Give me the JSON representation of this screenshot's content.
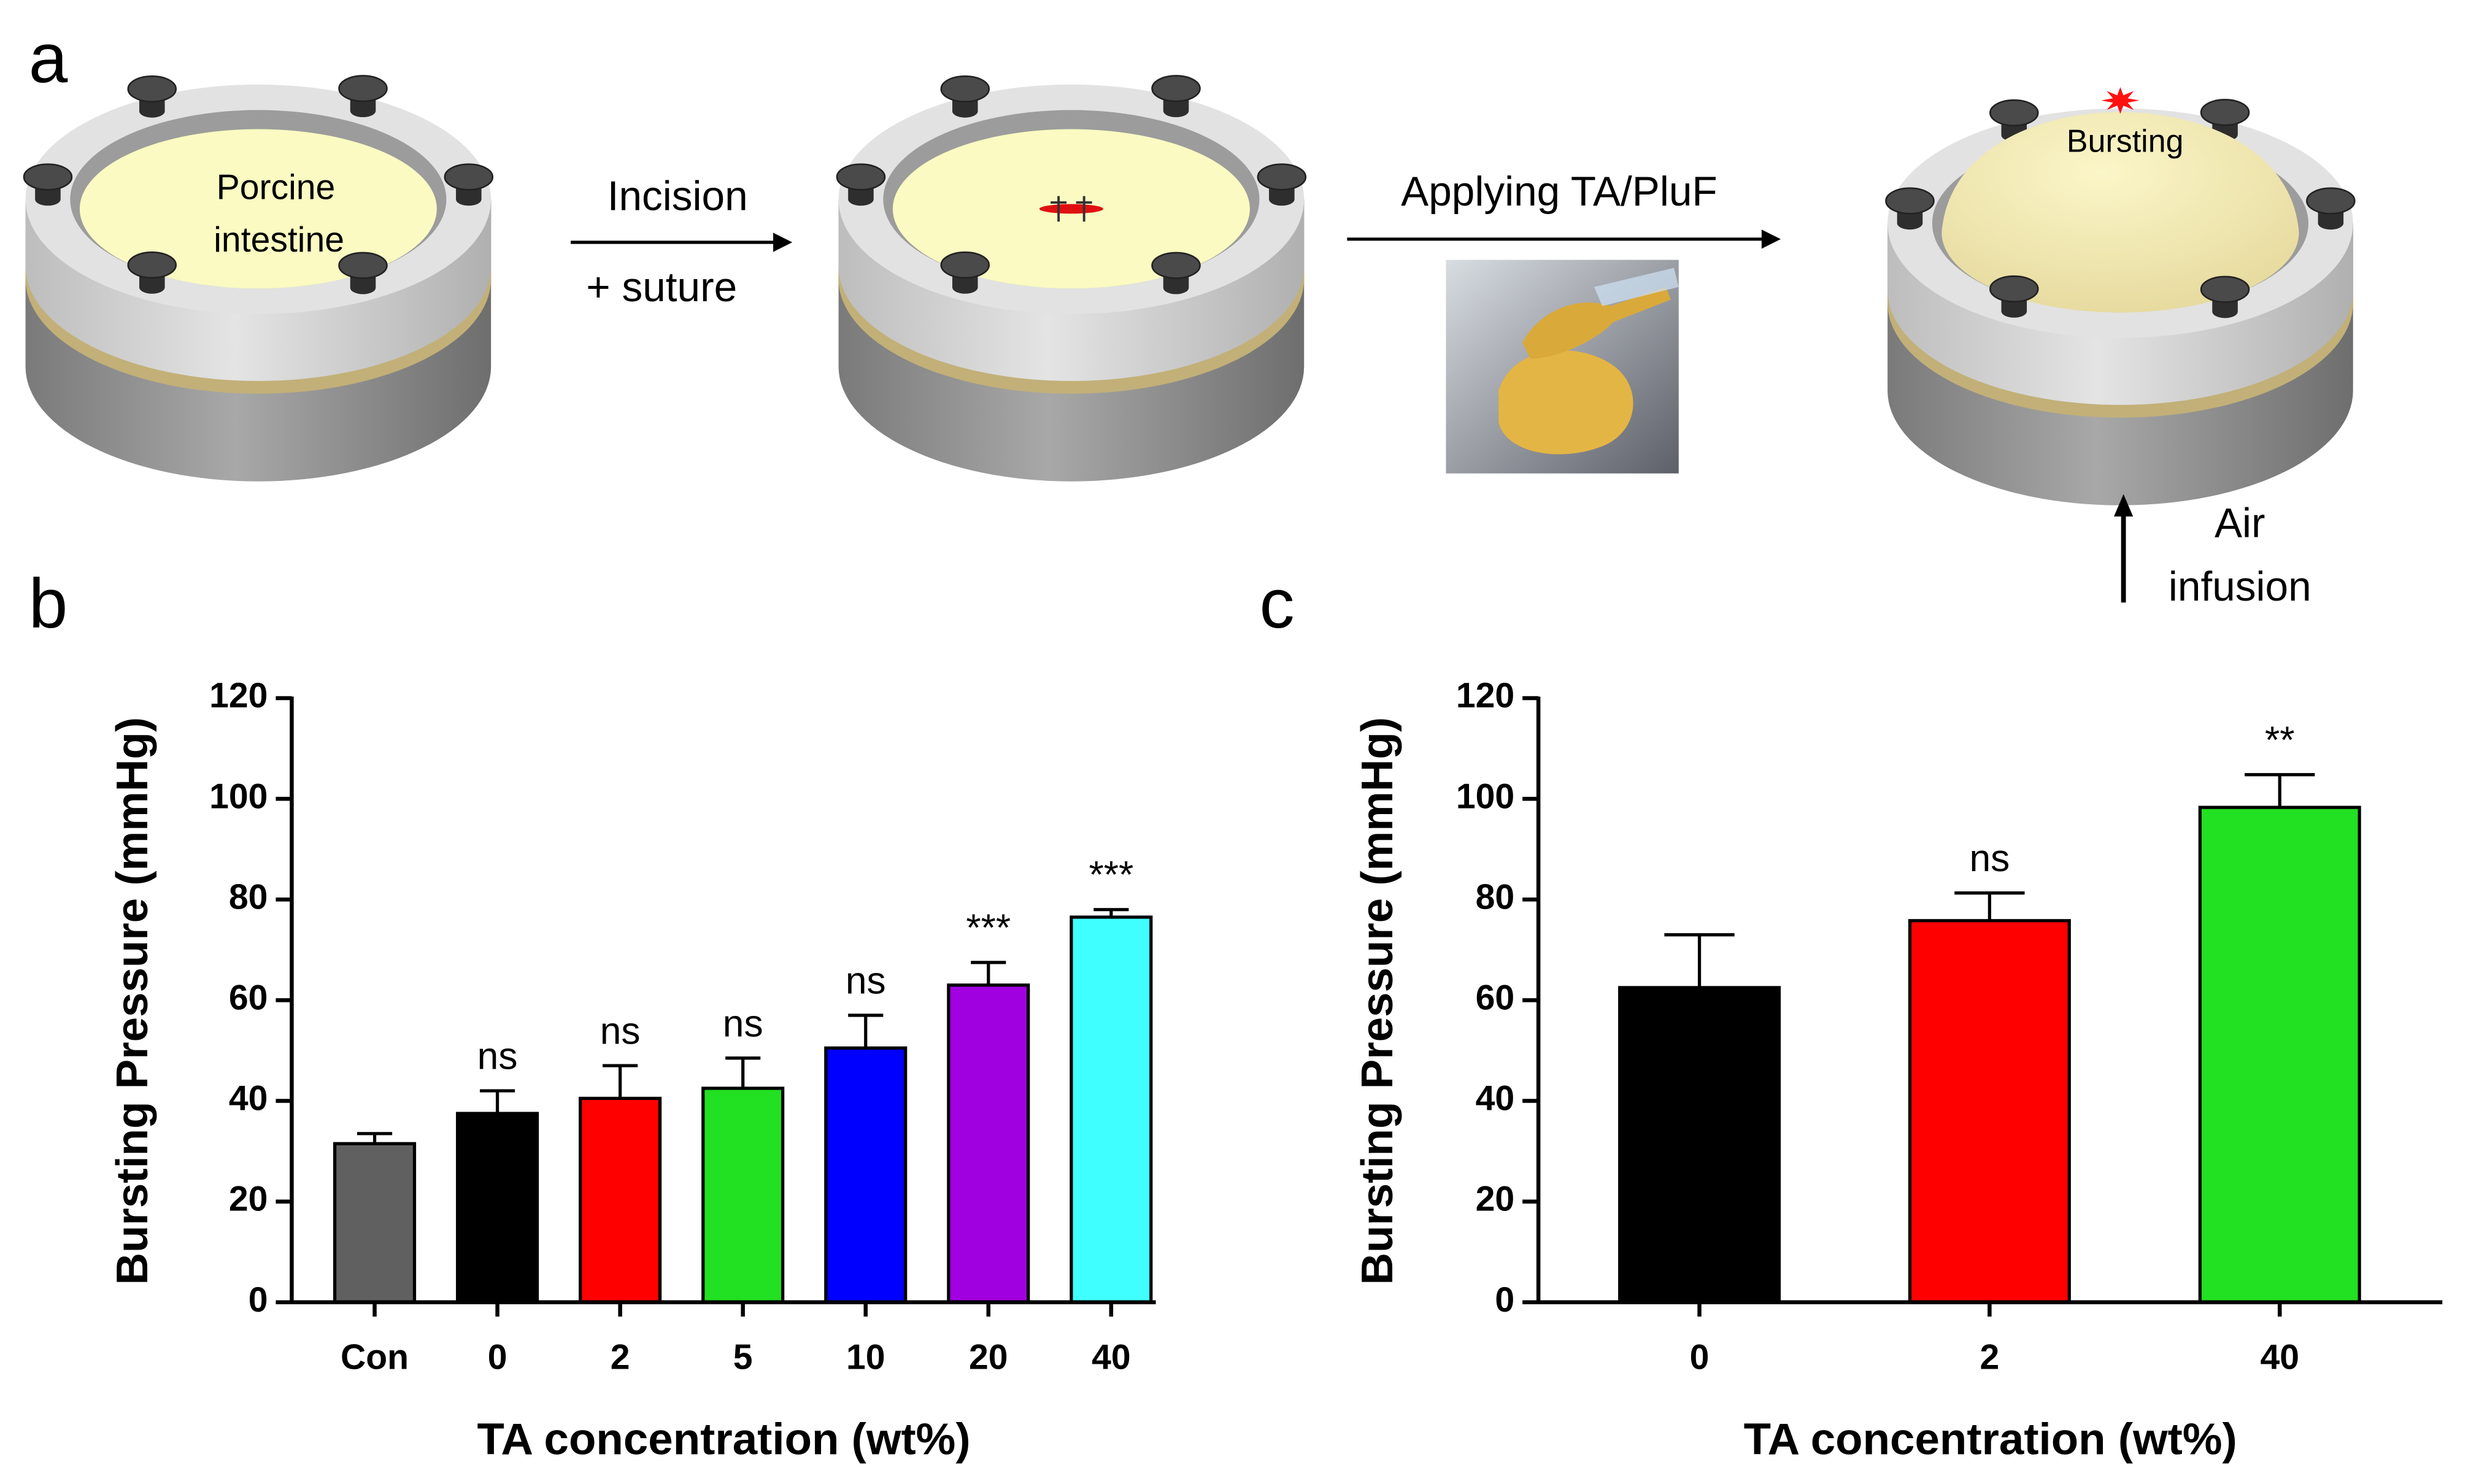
{
  "diagram": {
    "panel": "a",
    "sample_label": [
      "Porcine",
      "intestine"
    ],
    "step1": [
      "Incision",
      "+ suture"
    ],
    "step2": "Applying TA/PluF",
    "burst_label": "Bursting",
    "air": [
      "Air",
      "infusion"
    ]
  },
  "chart_data": [
    {
      "type": "bar",
      "panel": "b",
      "categories": [
        "Con",
        "0",
        "2",
        "5",
        "10",
        "20",
        "40"
      ],
      "values": [
        31.5,
        37.5,
        40.5,
        42.5,
        50.5,
        63,
        76.5
      ],
      "errors": [
        2,
        4.5,
        6.5,
        6,
        6.5,
        4.5,
        1.5
      ],
      "annotations": [
        null,
        "ns",
        "ns",
        "ns",
        "ns",
        "***",
        "***"
      ],
      "colors": [
        "#606060",
        "#000000",
        "#ff0000",
        "#22e022",
        "#0000ff",
        "#a000e0",
        "#40ffff"
      ],
      "ylabel": "Bursting Pressure (mmHg)",
      "xlabel": "TA concentration (wt%)",
      "ylim": [
        0,
        120
      ],
      "yticks": [
        0,
        20,
        40,
        60,
        80,
        100,
        120
      ]
    },
    {
      "type": "bar",
      "panel": "c",
      "categories": [
        "0",
        "2",
        "40"
      ],
      "values": [
        62.5,
        75.8,
        98.3
      ],
      "errors": [
        10.5,
        5.5,
        6.5
      ],
      "annotations": [
        null,
        "ns",
        "**"
      ],
      "colors": [
        "#000000",
        "#ff0000",
        "#22e022"
      ],
      "ylabel": "Bursting Pressure (mmHg)",
      "xlabel": "TA concentration (wt%)",
      "ylim": [
        0,
        120
      ],
      "yticks": [
        0,
        20,
        40,
        60,
        80,
        100,
        120
      ]
    }
  ]
}
